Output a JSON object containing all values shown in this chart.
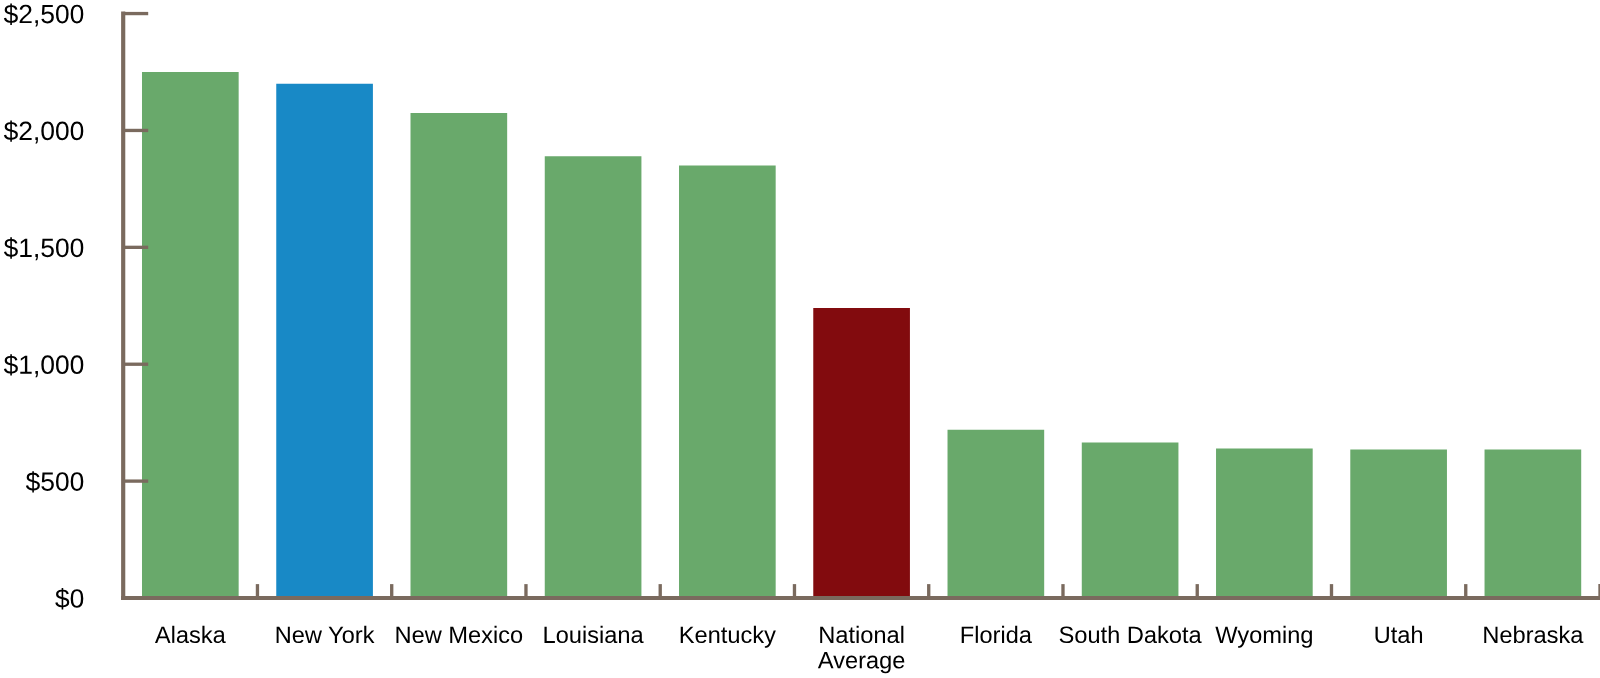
{
  "chart_data": {
    "type": "bar",
    "categories": [
      "Alaska",
      "New York",
      "New Mexico",
      "Louisiana",
      "Kentucky",
      "National\nAverage",
      "Florida",
      "South Dakota",
      "Wyoming",
      "Utah",
      "Nebraska"
    ],
    "values": [
      2250,
      2200,
      2075,
      1890,
      1850,
      1240,
      720,
      665,
      640,
      635,
      635
    ],
    "colors": [
      "#69a96b",
      "#1889c6",
      "#69a96b",
      "#69a96b",
      "#69a96b",
      "#820b0e",
      "#69a96b",
      "#69a96b",
      "#69a96b",
      "#69a96b",
      "#69a96b"
    ],
    "ylim": [
      0,
      2500
    ],
    "yticks": [
      {
        "value": 0,
        "label": "$0"
      },
      {
        "value": 500,
        "label": "$500"
      },
      {
        "value": 1000,
        "label": "$1,000"
      },
      {
        "value": 1500,
        "label": "$1,500"
      },
      {
        "value": 2000,
        "label": "$2,000"
      },
      {
        "value": 2500,
        "label": "$2,500"
      }
    ],
    "grid": false,
    "legend": false
  }
}
